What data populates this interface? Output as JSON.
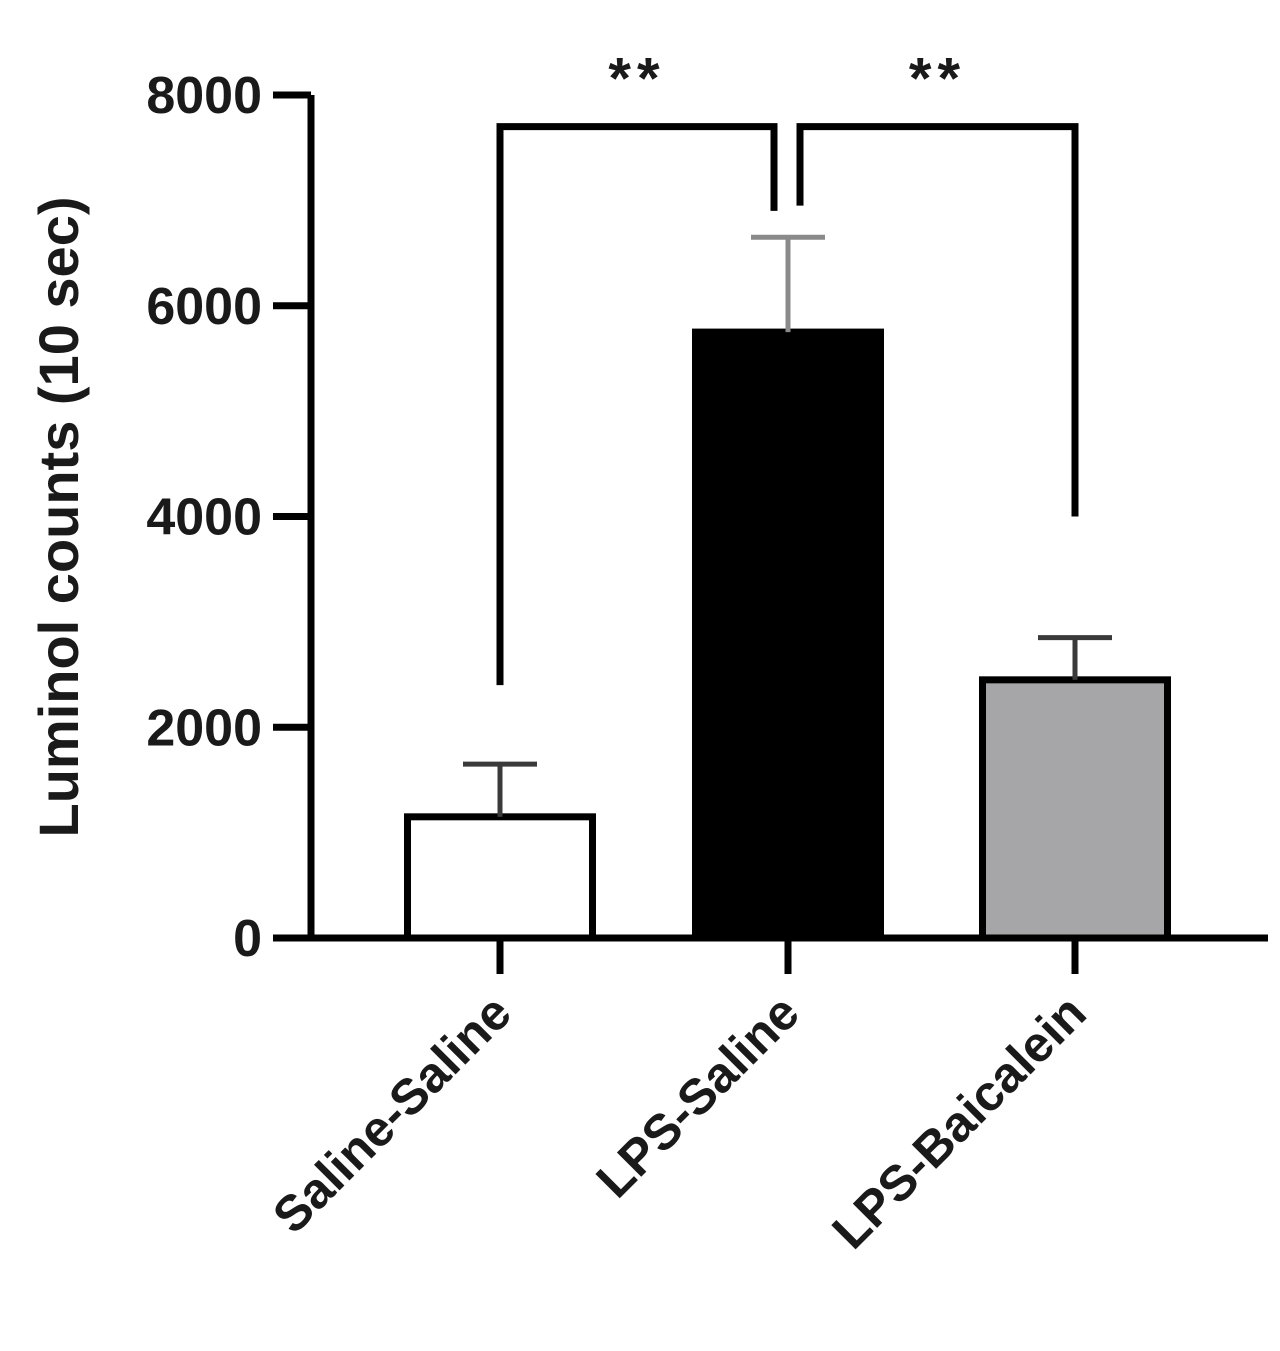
{
  "chart_data": {
    "type": "bar",
    "title": "",
    "xlabel": "",
    "ylabel": "Luminol counts (10 sec)",
    "ylim": [
      0,
      8000
    ],
    "yticks": [
      0,
      2000,
      4000,
      6000,
      8000
    ],
    "categories": [
      "Saline-Saline",
      "LPS-Saline",
      "LPS-Baicalein"
    ],
    "values": [
      1150,
      5750,
      2450
    ],
    "error_upper": [
      1650,
      6650,
      2850
    ],
    "bar_colors": [
      "#ffffff",
      "#000000",
      "#a6a6a9"
    ],
    "grid": false,
    "significance": [
      {
        "from": 0,
        "to": 1,
        "label": "**",
        "left_drop_to": 2400,
        "right_drop_to": 6900,
        "bracket_y": 7700
      },
      {
        "from": 1,
        "to": 2,
        "label": "**",
        "left_drop_to": 6950,
        "right_drop_to": 4000,
        "bracket_y": 7700
      }
    ]
  }
}
